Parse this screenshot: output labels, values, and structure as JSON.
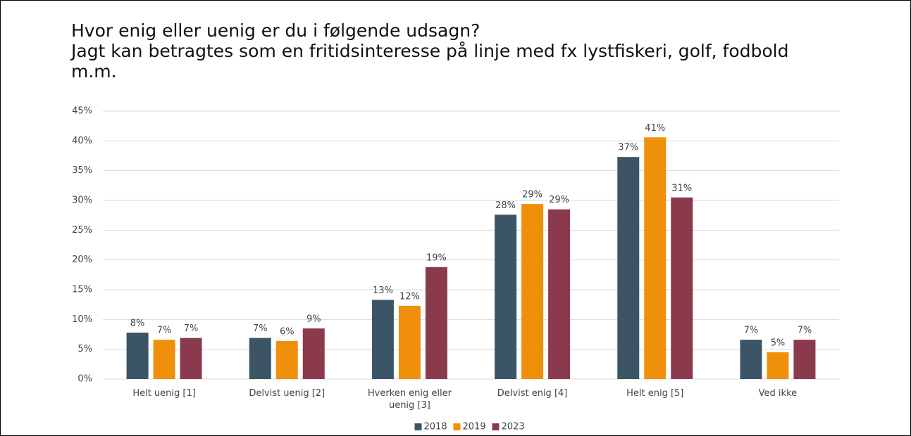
{
  "chart_data": {
    "type": "bar",
    "title": "Hvor enig eller uenig er du i følgende udsagn?",
    "subtitle": "Jagt kan betragtes som en fritidsinteresse på linje med fx lystfiskeri, golf, fodbold m.m.",
    "categories": [
      "Helt uenig [1]",
      "Delvist uenig [2]",
      "Hverken enig eller uenig [3]",
      "Delvist enig [4]",
      "Helt enig [5]",
      "Ved ikke"
    ],
    "series": [
      {
        "name": "2018",
        "color": "#3b5566",
        "values": [
          7.8,
          6.9,
          13.3,
          27.6,
          37.3,
          6.6
        ],
        "value_labels": [
          "8%",
          "7%",
          "13%",
          "28%",
          "37%",
          "7%"
        ]
      },
      {
        "name": "2019",
        "color": "#f0900a",
        "values": [
          6.6,
          6.4,
          12.3,
          29.4,
          40.6,
          4.5
        ],
        "value_labels": [
          "7%",
          "6%",
          "12%",
          "29%",
          "41%",
          "5%"
        ]
      },
      {
        "name": "2023",
        "color": "#8b3a4e",
        "values": [
          6.9,
          8.5,
          18.8,
          28.5,
          30.5,
          6.6
        ],
        "value_labels": [
          "7%",
          "9%",
          "19%",
          "29%",
          "31%",
          "7%"
        ]
      }
    ],
    "ylim": [
      0,
      45
    ],
    "yticks": [
      {
        "value": 0,
        "label": "0%"
      },
      {
        "value": 5,
        "label": "5%"
      },
      {
        "value": 10,
        "label": "10%"
      },
      {
        "value": 15,
        "label": "15%"
      },
      {
        "value": 20,
        "label": "20%"
      },
      {
        "value": 25,
        "label": "25%"
      },
      {
        "value": 30,
        "label": "30%"
      },
      {
        "value": 35,
        "label": "35%"
      },
      {
        "value": 40,
        "label": "40%"
      },
      {
        "value": 45,
        "label": "45%"
      }
    ],
    "grid": true,
    "legend": "bottom"
  }
}
